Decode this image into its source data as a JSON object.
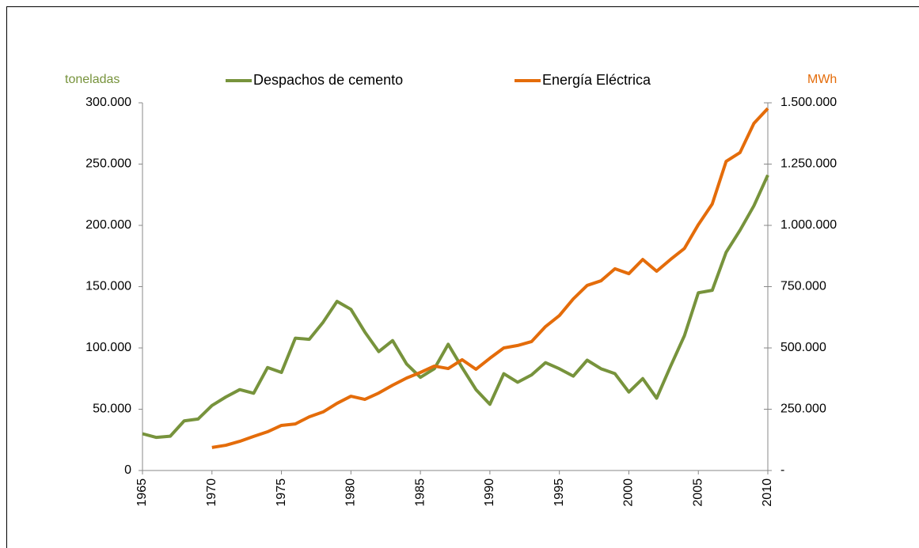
{
  "chart_data": {
    "type": "line",
    "y_label": "toneladas",
    "y2_label": "MWh",
    "x": [
      1965,
      1966,
      1967,
      1968,
      1969,
      1970,
      1971,
      1972,
      1973,
      1974,
      1975,
      1976,
      1977,
      1978,
      1979,
      1980,
      1981,
      1982,
      1983,
      1984,
      1985,
      1986,
      1987,
      1988,
      1989,
      1990,
      1991,
      1992,
      1993,
      1994,
      1995,
      1996,
      1997,
      1998,
      1999,
      2000,
      2001,
      2002,
      2003,
      2004,
      2005,
      2006,
      2007,
      2008,
      2009,
      2010
    ],
    "series": [
      {
        "name": "Despachos de cemento",
        "color": "#77933c",
        "axis": "y",
        "values": [
          30000,
          27000,
          28000,
          40500,
          42000,
          53000,
          60000,
          66000,
          63000,
          84000,
          80000,
          108000,
          107000,
          121000,
          138000,
          131500,
          113000,
          97000,
          106000,
          87000,
          76000,
          83000,
          103000,
          84000,
          66000,
          54000,
          79000,
          72000,
          78000,
          88000,
          83000,
          77000,
          90000,
          83000,
          79000,
          64000,
          75000,
          59000,
          85000,
          110000,
          145000,
          147000,
          178000,
          196000,
          216000,
          241000
        ]
      },
      {
        "name": "Energía Eléctrica",
        "color": "#e46c0a",
        "axis": "y2",
        "values": [
          null,
          null,
          null,
          null,
          null,
          94000,
          103000,
          119000,
          139000,
          158000,
          184000,
          190000,
          219000,
          239000,
          274000,
          303000,
          290000,
          316000,
          348000,
          377000,
          400000,
          426000,
          416000,
          452000,
          413000,
          458000,
          500000,
          510000,
          526000,
          587000,
          632000,
          700000,
          755000,
          774000,
          823000,
          803000,
          861000,
          813000,
          861000,
          906000,
          1003000,
          1087000,
          1261000,
          1297000,
          1416000,
          1477000
        ]
      }
    ],
    "xlim": [
      1965,
      2010
    ],
    "xticks": [
      1965,
      1970,
      1975,
      1980,
      1985,
      1990,
      1995,
      2000,
      2005,
      2010
    ],
    "ylim": [
      0,
      300000
    ],
    "yticks": [
      0,
      {
        "value": 50000,
        "label": "50.000"
      },
      {
        "value": 100000,
        "label": "100.000"
      },
      {
        "value": 150000,
        "label": "150.000"
      },
      {
        "value": 200000,
        "label": "200.000"
      },
      {
        "value": 250000,
        "label": "250.000"
      },
      {
        "value": 300000,
        "label": "300.000"
      }
    ],
    "y2lim": [
      0,
      1500000
    ],
    "y2ticks": [
      {
        "value": 0,
        "label": "-"
      },
      {
        "value": 250000,
        "label": "250.000"
      },
      {
        "value": 500000,
        "label": "500.000"
      },
      {
        "value": 750000,
        "label": "750.000"
      },
      {
        "value": 1000000,
        "label": "1.000.000"
      },
      {
        "value": 1250000,
        "label": "1.250.000"
      },
      {
        "value": 1500000,
        "label": "1.500.000"
      }
    ],
    "grid": false,
    "legend": "top"
  }
}
